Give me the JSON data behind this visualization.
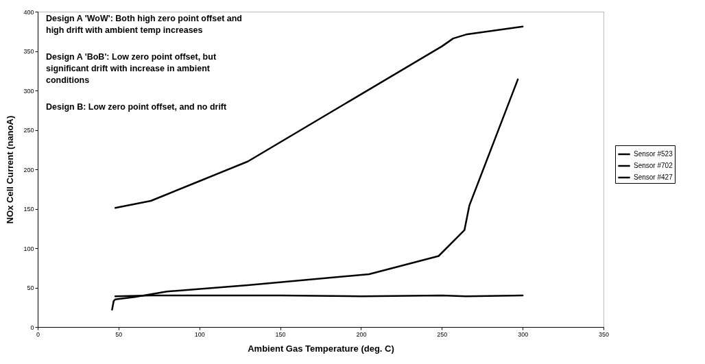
{
  "chart_data": {
    "type": "line",
    "xlabel": "Ambient Gas Temperature  (deg. C)",
    "ylabel": "NOx Cell Current  (nanoA)",
    "xlim": [
      0,
      350
    ],
    "xticks": [
      0,
      50,
      100,
      150,
      200,
      250,
      300,
      350
    ],
    "ylim": [
      0,
      400
    ],
    "yticks": [
      0,
      50,
      100,
      150,
      200,
      250,
      300,
      350,
      400
    ],
    "grid": false,
    "legend": "right",
    "marker": "none",
    "line_style": "solid",
    "annotations": [
      "Design A 'WoW':  Both high zero point offset and\nhigh drift with ambient temp increases",
      "Design A 'BoB': Low zero point offset, but\nsignificant drift with increase in ambient\nconditions",
      "Design B:  Low zero point offset, and no drift"
    ],
    "series": [
      {
        "name": "Sensor #523",
        "color": "#000000",
        "x": [
          48,
          70,
          100,
          130,
          190,
          250,
          257,
          265,
          300
        ],
        "values": [
          151,
          160,
          185,
          210,
          283,
          356,
          366,
          371,
          381
        ]
      },
      {
        "name": "Sensor #702",
        "color": "#000000",
        "x": [
          48,
          70,
          100,
          130,
          150,
          200,
          250,
          265,
          300
        ],
        "values": [
          39,
          40,
          40,
          40,
          40,
          39,
          40,
          39,
          40
        ]
      },
      {
        "name": "Sensor #427",
        "color": "#000000",
        "x": [
          46,
          47,
          48,
          60,
          80,
          130,
          205,
          248,
          264,
          267,
          297
        ],
        "values": [
          22,
          33,
          35,
          38,
          45,
          53,
          67,
          90,
          123,
          154,
          314
        ]
      }
    ]
  }
}
